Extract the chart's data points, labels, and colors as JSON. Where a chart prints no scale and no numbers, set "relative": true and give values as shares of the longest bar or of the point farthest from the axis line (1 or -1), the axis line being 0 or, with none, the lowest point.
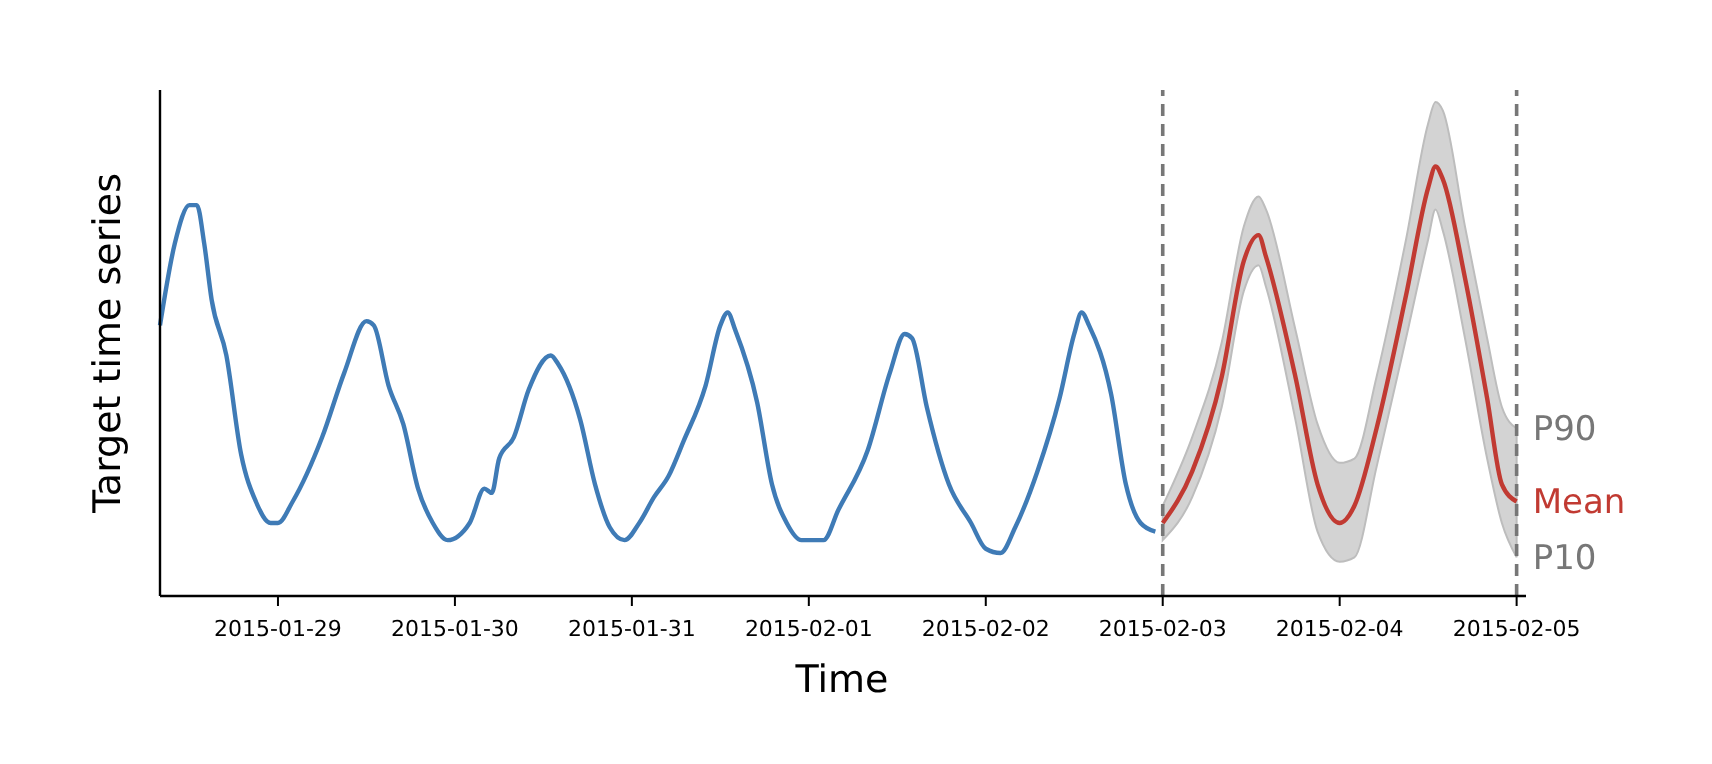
{
  "chart_data": {
    "type": "line",
    "relative": true,
    "xlabel": "Time",
    "ylabel": "Target time series",
    "tick_labels": "x",
    "grid": false,
    "line_style": "solid",
    "marker": "none",
    "xlim": [
      "2015-01-28T08:00",
      "2015-02-05T01:00"
    ],
    "xticks": [
      {
        "value": "2015-01-29",
        "label": "2015-01-29"
      },
      {
        "value": "2015-01-30",
        "label": "2015-01-30"
      },
      {
        "value": "2015-01-31",
        "label": "2015-01-31"
      },
      {
        "value": "2015-02-01",
        "label": "2015-02-01"
      },
      {
        "value": "2015-02-02",
        "label": "2015-02-02"
      },
      {
        "value": "2015-02-03",
        "label": "2015-02-03"
      },
      {
        "value": "2015-02-04",
        "label": "2015-02-04"
      },
      {
        "value": "2015-02-05",
        "label": "2015-02-05"
      }
    ],
    "series": [
      {
        "color": "#3f7bb6",
        "x": [
          "2015-01-28T08:00",
          "2015-01-28T10:00",
          "2015-01-28T12:00",
          "2015-01-28T13:00",
          "2015-01-28T14:00",
          "2015-01-28T15:00",
          "2015-01-28T17:00",
          "2015-01-28T19:00",
          "2015-01-28T21:00",
          "2015-01-28T23:00",
          "2015-01-29T00:00",
          "2015-01-29T02:00",
          "2015-01-29T06:00",
          "2015-01-29T09:00",
          "2015-01-29T12:00",
          "2015-01-29T13:00",
          "2015-01-29T15:00",
          "2015-01-29T17:00",
          "2015-01-29T19:00",
          "2015-01-29T21:00",
          "2015-01-29T23:00",
          "2015-01-30T02:00",
          "2015-01-30T04:00",
          "2015-01-30T05:00",
          "2015-01-30T06:00",
          "2015-01-30T08:00",
          "2015-01-30T10:00",
          "2015-01-30T13:00",
          "2015-01-30T14:00",
          "2015-01-30T17:00",
          "2015-01-30T19:00",
          "2015-01-30T21:00",
          "2015-01-30T23:00",
          "2015-01-31T01:00",
          "2015-01-31T03:00",
          "2015-01-31T05:00",
          "2015-01-31T07:00",
          "2015-01-31T10:00",
          "2015-01-31T12:00",
          "2015-01-31T13:00",
          "2015-01-31T14:00",
          "2015-01-31T17:00",
          "2015-01-31T19:00",
          "2015-01-31T21:00",
          "2015-01-31T23:00",
          "2015-02-01T02:00",
          "2015-02-01T04:00",
          "2015-02-01T08:00",
          "2015-02-01T11:00",
          "2015-02-01T13:00",
          "2015-02-01T14:00",
          "2015-02-01T16:00",
          "2015-02-01T19:00",
          "2015-02-01T22:00",
          "2015-02-02T00:00",
          "2015-02-02T02:00",
          "2015-02-02T04:00",
          "2015-02-02T07:00",
          "2015-02-02T10:00",
          "2015-02-02T12:00",
          "2015-02-02T13:00",
          "2015-02-02T14:00",
          "2015-02-02T17:00",
          "2015-02-02T19:00",
          "2015-02-02T21:00",
          "2015-02-02T23:00"
        ],
        "values": [
          0.63,
          0.82,
          0.91,
          0.91,
          0.82,
          0.69,
          0.56,
          0.33,
          0.22,
          0.17,
          0.17,
          0.22,
          0.37,
          0.52,
          0.64,
          0.63,
          0.49,
          0.4,
          0.25,
          0.17,
          0.13,
          0.17,
          0.25,
          0.24,
          0.32,
          0.37,
          0.48,
          0.56,
          0.54,
          0.41,
          0.26,
          0.16,
          0.13,
          0.17,
          0.23,
          0.28,
          0.36,
          0.49,
          0.63,
          0.66,
          0.62,
          0.45,
          0.26,
          0.17,
          0.13,
          0.13,
          0.2,
          0.34,
          0.52,
          0.61,
          0.6,
          0.44,
          0.26,
          0.17,
          0.11,
          0.1,
          0.16,
          0.29,
          0.46,
          0.61,
          0.66,
          0.63,
          0.47,
          0.26,
          0.17,
          0.15
        ]
      },
      {
        "name": "Mean",
        "color": "#c13a32",
        "x": [
          "2015-02-03T00:00",
          "2015-02-03T04:00",
          "2015-02-03T08:00",
          "2015-02-03T11:00",
          "2015-02-03T13:00",
          "2015-02-03T14:00",
          "2015-02-03T18:00",
          "2015-02-03T21:00",
          "2015-02-04T00:00",
          "2015-02-04T02:00",
          "2015-02-04T05:00",
          "2015-02-04T09:00",
          "2015-02-04T12:00",
          "2015-02-04T13:00",
          "2015-02-04T14:00",
          "2015-02-04T17:00",
          "2015-02-04T20:00",
          "2015-02-04T22:00",
          "2015-02-05T00:00"
        ],
        "values": [
          0.17,
          0.29,
          0.51,
          0.78,
          0.84,
          0.79,
          0.51,
          0.26,
          0.17,
          0.21,
          0.39,
          0.7,
          0.95,
          1.0,
          0.97,
          0.74,
          0.46,
          0.26,
          0.22
        ],
        "upper": [
          0.21,
          0.37,
          0.59,
          0.86,
          0.93,
          0.9,
          0.62,
          0.4,
          0.31,
          0.32,
          0.51,
          0.83,
          1.1,
          1.15,
          1.13,
          0.86,
          0.6,
          0.44,
          0.39
        ],
        "lower": [
          0.13,
          0.23,
          0.44,
          0.71,
          0.77,
          0.72,
          0.41,
          0.15,
          0.08,
          0.09,
          0.3,
          0.6,
          0.83,
          0.9,
          0.85,
          0.6,
          0.32,
          0.17,
          0.09
        ]
      }
    ],
    "ref_lines": [
      {
        "axis": "x",
        "value": "2015-02-03",
        "color": "#777777",
        "line_style": "dashed"
      },
      {
        "axis": "x",
        "value": "2015-02-05",
        "color": "#777777",
        "line_style": "dashed"
      }
    ],
    "annotations": [
      {
        "text": "P90",
        "x": "2015-02-05T00:00",
        "y": 0.39
      },
      {
        "text": "P10",
        "x": "2015-02-05T00:00",
        "y": 0.09
      }
    ]
  }
}
